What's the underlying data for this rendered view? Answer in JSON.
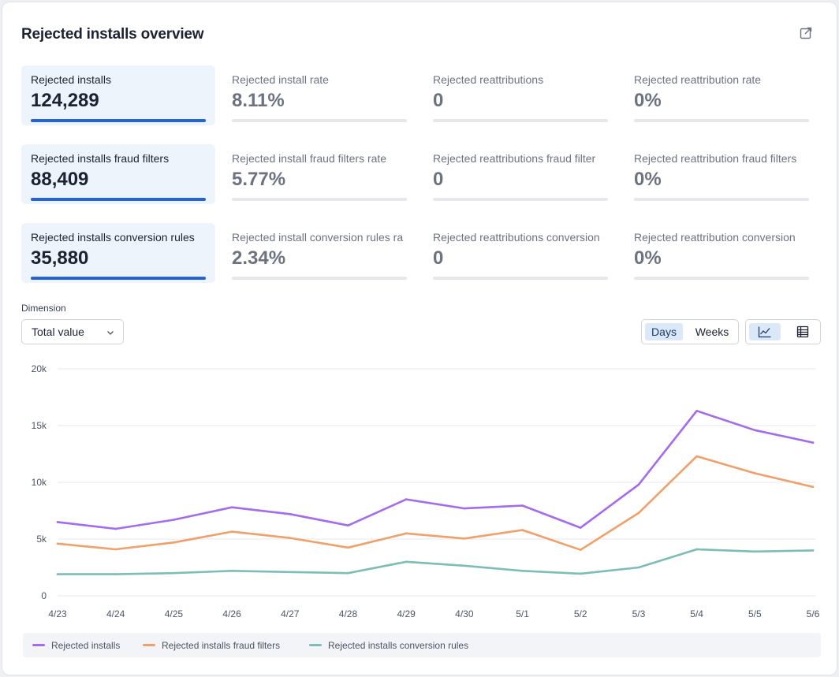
{
  "header": {
    "title": "Rejected installs overview",
    "export_icon": "external-link-icon"
  },
  "metrics": [
    [
      {
        "label": "Rejected installs",
        "value": "124,289",
        "active": true
      },
      {
        "label": "Rejected install rate",
        "value": "8.11%",
        "active": false
      },
      {
        "label": "Rejected reattributions",
        "value": "0",
        "active": false
      },
      {
        "label": "Rejected reattribution rate",
        "value": "0%",
        "active": false
      }
    ],
    [
      {
        "label": "Rejected installs fraud filters",
        "value": "88,409",
        "active": true
      },
      {
        "label": "Rejected install fraud filters rate",
        "value": "5.77%",
        "active": false
      },
      {
        "label": "Rejected reattributions fraud filter",
        "value": "0",
        "active": false
      },
      {
        "label": "Rejected reattribution fraud filters",
        "value": "0%",
        "active": false
      }
    ],
    [
      {
        "label": "Rejected installs conversion rules",
        "value": "35,880",
        "active": true
      },
      {
        "label": "Rejected install conversion rules ra",
        "value": "2.34%",
        "active": false
      },
      {
        "label": "Rejected reattributions conversion",
        "value": "0",
        "active": false
      },
      {
        "label": "Rejected reattribution conversion",
        "value": "0%",
        "active": false
      }
    ]
  ],
  "controls": {
    "dimension_label": "Dimension",
    "dimension_value": "Total value",
    "period_options": [
      "Days",
      "Weeks"
    ],
    "period_selected": "Days",
    "view_options": [
      "line-chart-icon",
      "table-icon"
    ],
    "view_selected": "line-chart-icon"
  },
  "colors": {
    "accent": "#2563d9",
    "purple": "#a46bec",
    "orange": "#f0a06a",
    "teal": "#7cbdb6"
  },
  "chart_data": {
    "type": "line",
    "x": [
      "4/23",
      "4/24",
      "4/25",
      "4/26",
      "4/27",
      "4/28",
      "4/29",
      "4/30",
      "5/1",
      "5/2",
      "5/3",
      "5/4",
      "5/5",
      "5/6"
    ],
    "y_ticks": [
      "20k",
      "15k",
      "10k",
      "5k",
      "0"
    ],
    "ylim": [
      0,
      20000
    ],
    "grid": true,
    "legend_position": "bottom",
    "series": [
      {
        "name": "Rejected installs",
        "color": "#a46bec",
        "values": [
          6500,
          5900,
          6700,
          7800,
          7200,
          6200,
          8500,
          7700,
          7950,
          6000,
          9800,
          16300,
          14600,
          13500
        ]
      },
      {
        "name": "Rejected installs fraud filters",
        "color": "#f0a06a",
        "values": [
          4600,
          4100,
          4700,
          5650,
          5100,
          4250,
          5500,
          5050,
          5800,
          4050,
          7300,
          12300,
          10800,
          9600
        ]
      },
      {
        "name": "Rejected installs conversion rules",
        "color": "#7cbdb6",
        "values": [
          1900,
          1900,
          2000,
          2200,
          2100,
          2000,
          3000,
          2650,
          2200,
          1950,
          2500,
          4100,
          3900,
          4000
        ]
      }
    ]
  }
}
